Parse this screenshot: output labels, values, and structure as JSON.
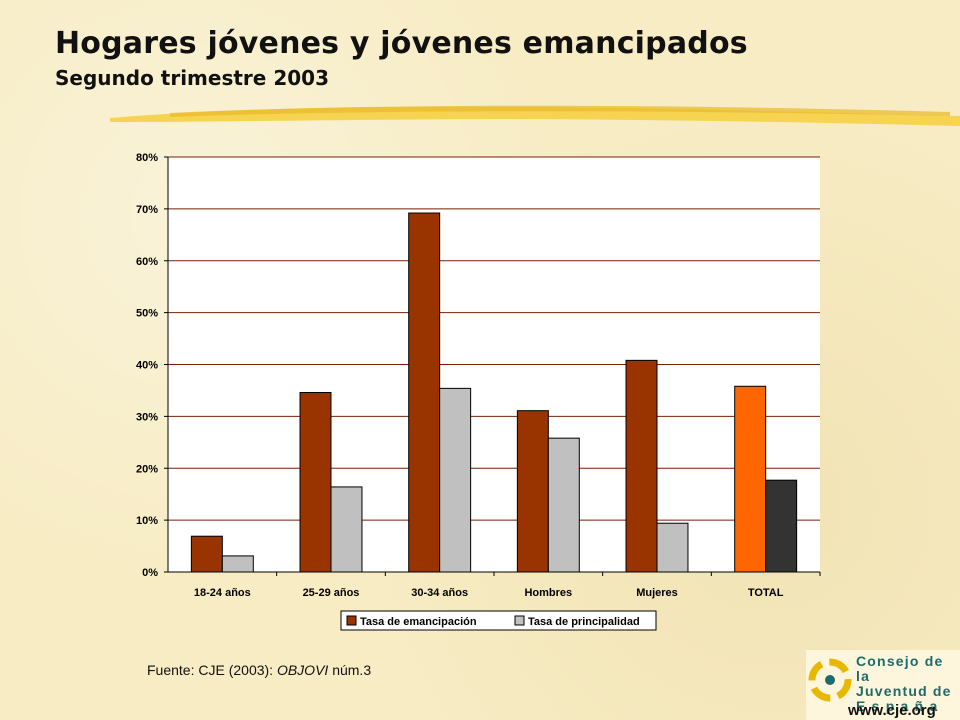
{
  "title": "Hogares jóvenes y jóvenes emancipados",
  "subtitle": "Segundo trimestre 2003",
  "source": {
    "prefix": "Fuente: CJE (2003): ",
    "italic": "OBJOVI",
    "suffix": " núm.3"
  },
  "logo": {
    "line1": "Consejo de la",
    "line2": "Juventud de",
    "line3": "E s p a ñ a",
    "url": "www.cje.org"
  },
  "colors": {
    "background": "#f7ecc4",
    "brush_stroke": "#f5d24a",
    "emancipacion": "#993300",
    "principalidad": "#c0c0c0",
    "total_emancipacion": "#ff6600",
    "total_principalidad": "#333333"
  },
  "chart_data": {
    "type": "bar",
    "categories": [
      "18-24 años",
      "25-29 años",
      "30-34 años",
      "Hombres",
      "Mujeres",
      "TOTAL"
    ],
    "series": [
      {
        "name": "Tasa de emancipación",
        "values": [
          6.9,
          34.6,
          69.2,
          31.1,
          40.8,
          35.8
        ]
      },
      {
        "name": "Tasa de principalidad",
        "values": [
          3.1,
          16.4,
          35.4,
          25.8,
          9.4,
          17.7
        ]
      }
    ],
    "ylim": [
      0,
      80
    ],
    "yticks": [
      "0%",
      "10%",
      "20%",
      "30%",
      "40%",
      "50%",
      "60%",
      "70%",
      "80%"
    ],
    "grid": true,
    "legend_position": "bottom"
  }
}
